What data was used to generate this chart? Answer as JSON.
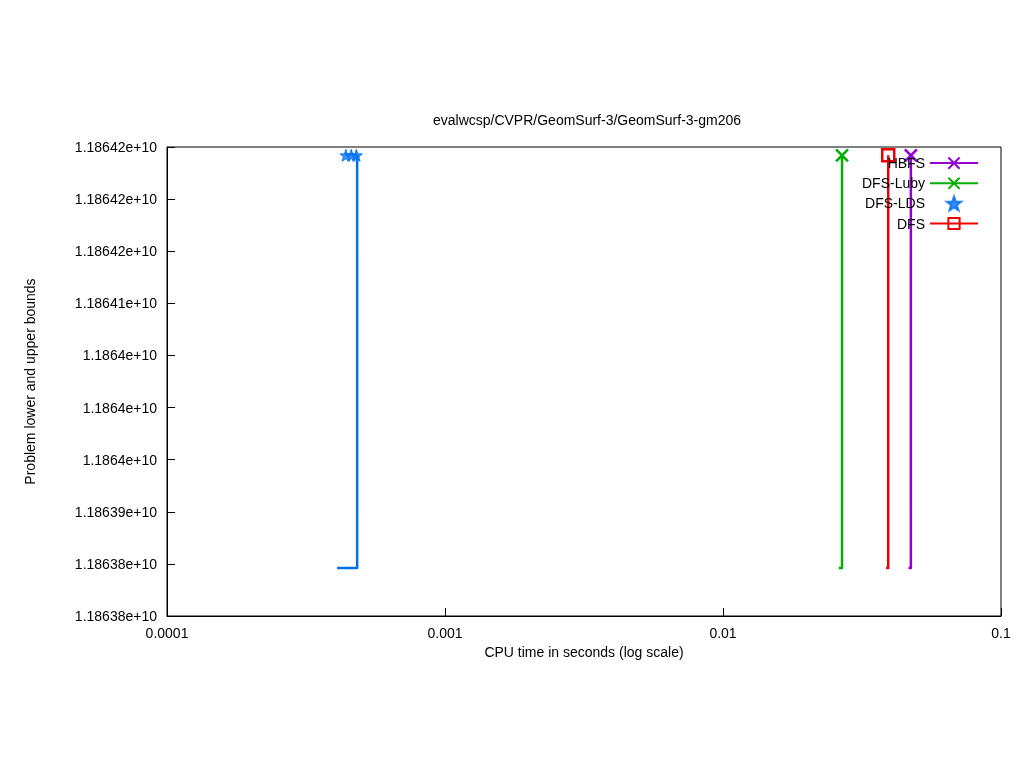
{
  "chart_data": {
    "type": "line",
    "title": "evalwcsp/CVPR/GeomSurf-3/GeomSurf-3-gm206",
    "xlabel": "CPU time in seconds (log scale)",
    "ylabel": "Problem lower and upper bounds",
    "log": "x",
    "grid": false,
    "legend": "top right",
    "xlim": [
      0.0001,
      0.1
    ],
    "xticks": [
      0.0001,
      0.001,
      0.01,
      0.1
    ],
    "ylim": [
      11863800000,
      11864250000
    ],
    "yticks": [
      {
        "value": 11863800000,
        "label": "1.18638e+10"
      },
      {
        "value": 11863850000,
        "label": "1.18638e+10"
      },
      {
        "value": 11863900000,
        "label": "1.18639e+10"
      },
      {
        "value": 11863950000,
        "label": "1.1864e+10"
      },
      {
        "value": 11864000000,
        "label": "1.1864e+10"
      },
      {
        "value": 11864050000,
        "label": "1.1864e+10"
      },
      {
        "value": 11864100000,
        "label": "1.18641e+10"
      },
      {
        "value": 11864150000,
        "label": "1.18642e+10"
      },
      {
        "value": 11864200000,
        "label": "1.18642e+10"
      },
      {
        "value": 11864250000,
        "label": "1.18642e+10"
      }
    ],
    "series": [
      {
        "name": "HBFS",
        "color": "#9400d3",
        "marker": "cross",
        "x": [
          0.0474
        ],
        "values": [
          11864242000
        ]
      },
      {
        "name": "DFS-Luby",
        "color": "#00b000",
        "marker": "cross",
        "x": [
          0.0268
        ],
        "values": [
          11864242000
        ]
      },
      {
        "name": "DFS-LDS",
        "type": "scatter",
        "color": "#0070f0",
        "marker": "star",
        "x": [
          0.00044,
          0.00046,
          0.00048
        ],
        "values": [
          11864242000,
          11864242000,
          11864242000
        ]
      },
      {
        "name": "DFS",
        "color": "#f00000",
        "marker": "square",
        "x": [
          0.0393
        ],
        "values": [
          11864242000
        ]
      },
      {
        "color": "#9400d3",
        "marker": "none",
        "x": [
          0.0465,
          0.0474,
          0.0474
        ],
        "values": [
          11863846000,
          11863846000,
          11864242000
        ]
      },
      {
        "color": "#00b000",
        "marker": "none",
        "x": [
          0.0261,
          0.0268,
          0.0268
        ],
        "values": [
          11863846000,
          11863846000,
          11864242000
        ]
      },
      {
        "color": "#0070f0",
        "marker": "none",
        "x": [
          0.000409,
          0.000483,
          0.000483
        ],
        "values": [
          11863846000,
          11863846000,
          11864242000
        ]
      },
      {
        "color": "#f00000",
        "marker": "none",
        "x": [
          0.0386,
          0.0393,
          0.0393
        ],
        "values": [
          11863846000,
          11863846000,
          11864242000
        ]
      }
    ]
  }
}
